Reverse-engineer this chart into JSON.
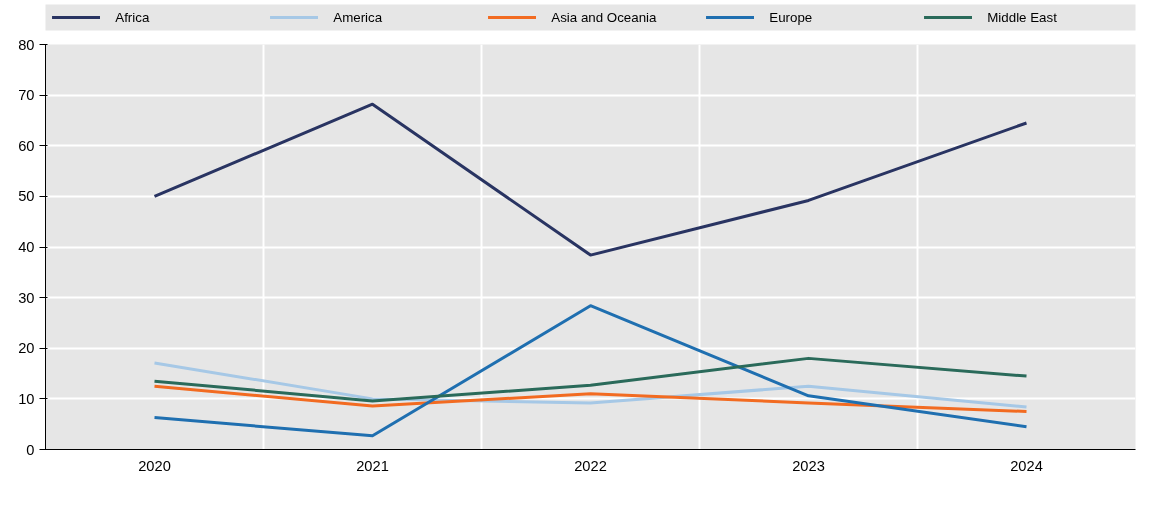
{
  "chart_data": {
    "type": "line",
    "categories": [
      "2020",
      "2021",
      "2022",
      "2023",
      "2024"
    ],
    "series": [
      {
        "name": "Africa",
        "color": "#293462",
        "values": [
          50.0,
          68.2,
          38.4,
          49.2,
          64.5
        ]
      },
      {
        "name": "America",
        "color": "#a6c8e6",
        "values": [
          17.1,
          10.0,
          9.2,
          12.5,
          8.4
        ]
      },
      {
        "name": "Asia and Oceania",
        "color": "#f26b21",
        "values": [
          12.5,
          8.6,
          11.0,
          9.2,
          7.5
        ]
      },
      {
        "name": "Europe",
        "color": "#1f6fb0",
        "values": [
          6.3,
          2.7,
          28.4,
          10.6,
          4.5
        ]
      },
      {
        "name": "Middle East",
        "color": "#2a6a5a",
        "values": [
          13.5,
          9.6,
          12.7,
          18.0,
          14.5
        ]
      }
    ],
    "ylim": [
      0,
      80
    ],
    "yticks": [
      0,
      10,
      20,
      30,
      40,
      50,
      60,
      70,
      80
    ],
    "grid": true,
    "legend": "top",
    "marker": "none",
    "line_style": "solid"
  }
}
